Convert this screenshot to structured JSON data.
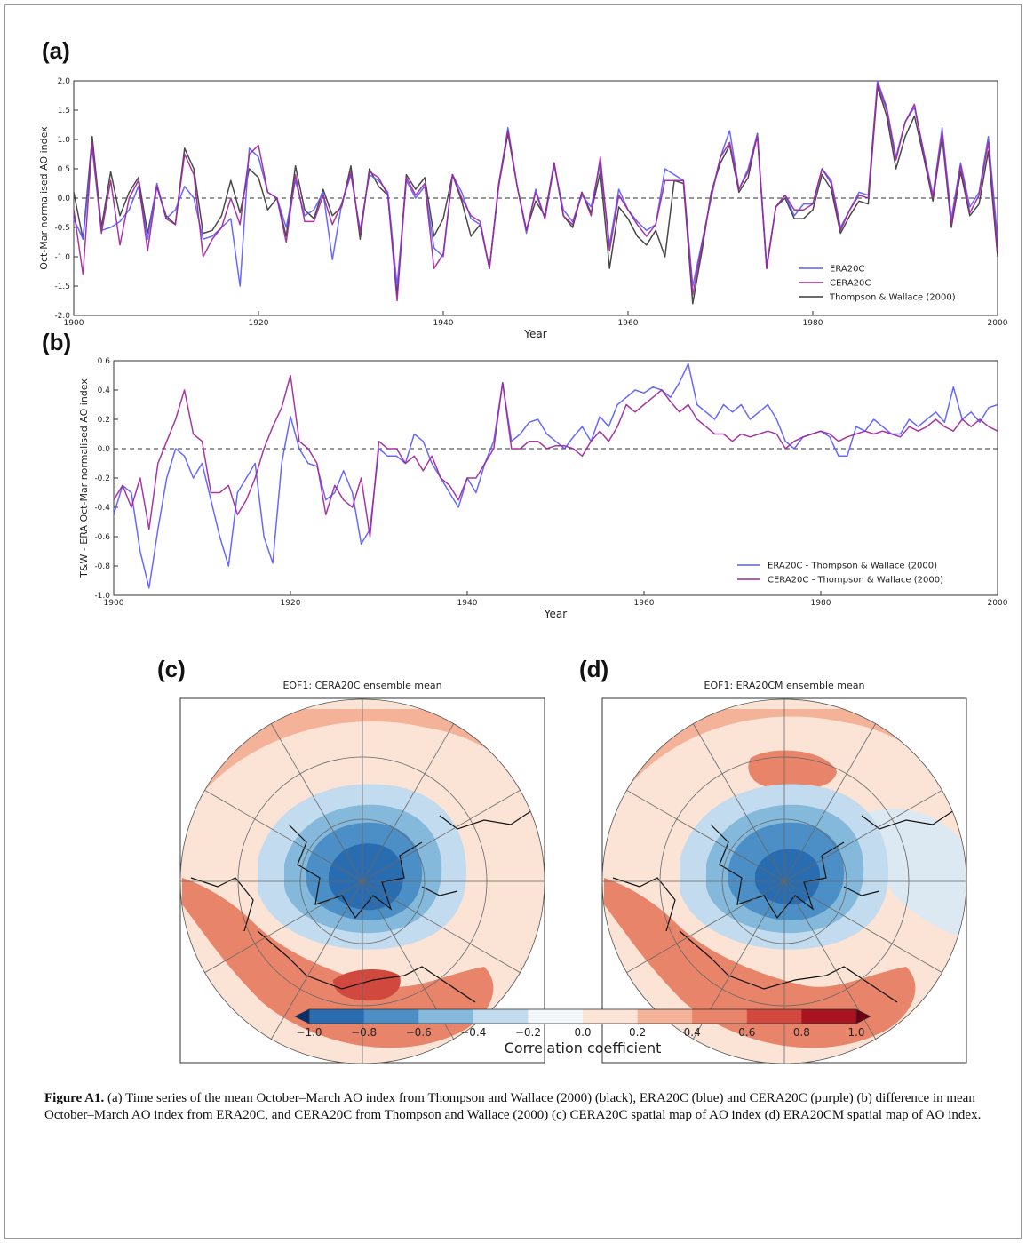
{
  "figure": {
    "caption_label": "Figure A1.",
    "caption_text": " (a) Time series of the mean October–March AO index from Thompson and Wallace (2000) (black), ERA20C (blue) and CERA20C (purple) (b) difference in mean October–March AO index from ERA20C, and CERA20C from Thompson and Wallace (2000) (c) CERA20C spatial map of AO index (d) ERA20CM spatial map of AO index."
  },
  "chart_data": [
    {
      "panel": "(a)",
      "type": "line",
      "xlabel": "Year",
      "ylabel": "Oct-Mar normalised AO index",
      "xlim": [
        1900,
        2000
      ],
      "ylim": [
        -2.0,
        2.0
      ],
      "xticks": [
        "1900",
        "1920",
        "1940",
        "1960",
        "1980",
        "2000"
      ],
      "yticks": [
        "2.0",
        "1.5",
        "1.0",
        "0.5",
        "0.0",
        "-0.5",
        "-1.0",
        "-1.5",
        "-2.0"
      ],
      "legend_position": "lower-right",
      "zero_line": true,
      "colors": {
        "ERA20C": "#5b5bff",
        "CERA20C": "#a0269a",
        "Thompson & Wallace (2000)": "#3a3a3a"
      },
      "series": [
        {
          "name": "Thompson & Wallace (2000)",
          "color": "#3a3a3a",
          "values": [
            0.1,
            -0.7,
            1.05,
            -0.5,
            0.45,
            -0.3,
            0.1,
            0.35,
            -0.6,
            0.2,
            -0.3,
            -0.45,
            0.85,
            0.5,
            -0.6,
            -0.55,
            -0.3,
            0.3,
            -0.25,
            0.5,
            0.35,
            -0.2,
            0.0,
            -0.65,
            0.55,
            -0.2,
            -0.35,
            0.15,
            -0.3,
            -0.15,
            0.55,
            -0.7,
            0.5,
            0.2,
            0.05,
            -1.65,
            0.4,
            0.15,
            0.35,
            -0.65,
            -0.35,
            0.4,
            -0.05,
            -0.65,
            -0.45,
            -1.2,
            0.2,
            1.1,
            0.2,
            -0.55,
            -0.05,
            -0.3,
            0.6,
            -0.3,
            -0.5,
            0.1,
            -0.25,
            0.45,
            -1.2,
            -0.15,
            -0.35,
            -0.65,
            -0.8,
            -0.55,
            -1.0,
            0.3,
            0.25,
            -1.8,
            -0.9,
            0.1,
            0.6,
            0.9,
            0.1,
            0.35,
            1.1,
            -1.2,
            -0.15,
            0.0,
            -0.35,
            -0.35,
            -0.2,
            0.4,
            0.15,
            -0.6,
            -0.3,
            -0.05,
            -0.1,
            1.9,
            1.4,
            0.5,
            1.05,
            1.4,
            0.7,
            -0.05,
            1.05,
            -0.5,
            0.45,
            -0.3,
            -0.1,
            0.8,
            -1.0
          ]
        },
        {
          "name": "ERA20C",
          "color": "#5b5bff",
          "values": [
            -0.35,
            -0.7,
            0.85,
            -0.55,
            -0.5,
            -0.4,
            -0.2,
            0.2,
            -0.7,
            0.25,
            -0.35,
            -0.2,
            0.2,
            0.0,
            -0.7,
            -0.65,
            -0.5,
            -0.35,
            -1.5,
            0.85,
            0.7,
            0.1,
            0.0,
            -0.5,
            0.3,
            -0.3,
            -0.2,
            0.1,
            -1.05,
            -0.1,
            0.4,
            -0.55,
            0.4,
            0.3,
            0.1,
            -1.5,
            0.3,
            0.0,
            0.2,
            -0.85,
            -1.0,
            0.4,
            0.1,
            -0.35,
            -0.45,
            -1.2,
            0.2,
            1.2,
            0.2,
            -0.6,
            0.15,
            -0.35,
            0.55,
            -0.2,
            -0.4,
            0.05,
            -0.15,
            0.6,
            -0.8,
            0.15,
            -0.2,
            -0.4,
            -0.55,
            -0.45,
            0.5,
            0.4,
            0.3,
            -1.5,
            -0.75,
            0.0,
            0.7,
            1.15,
            0.15,
            0.5,
            1.1,
            -1.15,
            -0.15,
            0.05,
            -0.3,
            -0.1,
            -0.1,
            0.5,
            0.3,
            -0.5,
            -0.2,
            0.1,
            0.05,
            2.0,
            1.55,
            0.7,
            1.3,
            1.55,
            0.8,
            0.05,
            1.2,
            -0.35,
            0.6,
            -0.15,
            0.1,
            1.05,
            -0.7
          ]
        },
        {
          "name": "CERA20C",
          "color": "#a0269a",
          "values": [
            -0.2,
            -1.3,
            0.95,
            -0.6,
            0.3,
            -0.8,
            0.0,
            0.3,
            -0.9,
            0.2,
            -0.35,
            -0.45,
            0.75,
            0.4,
            -1.0,
            -0.7,
            -0.5,
            0.0,
            -0.45,
            0.75,
            0.9,
            0.1,
            0.0,
            -0.75,
            0.4,
            -0.4,
            -0.4,
            0.05,
            -0.45,
            -0.1,
            0.45,
            -0.6,
            0.45,
            0.35,
            0.05,
            -1.75,
            0.35,
            0.05,
            0.25,
            -1.2,
            -0.95,
            0.4,
            0.0,
            -0.3,
            -0.4,
            -1.2,
            0.25,
            1.15,
            0.2,
            -0.55,
            0.1,
            -0.35,
            0.6,
            -0.3,
            -0.45,
            0.1,
            -0.3,
            0.7,
            -0.9,
            0.05,
            -0.2,
            -0.45,
            -0.65,
            -0.45,
            0.3,
            0.3,
            0.3,
            -1.65,
            -0.8,
            0.05,
            0.7,
            0.95,
            0.15,
            0.45,
            1.05,
            -1.2,
            -0.15,
            0.05,
            -0.2,
            -0.2,
            -0.1,
            0.5,
            0.25,
            -0.55,
            -0.2,
            0.05,
            0.0,
            1.95,
            1.5,
            0.65,
            1.3,
            1.6,
            0.75,
            0.0,
            1.1,
            -0.45,
            0.55,
            -0.25,
            0.05,
            0.95,
            -0.9
          ]
        }
      ]
    },
    {
      "panel": "(b)",
      "type": "line",
      "xlabel": "Year",
      "ylabel": "T&W - ERA Oct-Mar normalised AO index",
      "xlim": [
        1900,
        2000
      ],
      "ylim": [
        -1.0,
        0.6
      ],
      "xticks": [
        "1900",
        "1920",
        "1940",
        "1960",
        "1980",
        "2000"
      ],
      "yticks": [
        "0.6",
        "0.4",
        "0.2",
        "0.0",
        "-0.2",
        "-0.4",
        "-0.6",
        "-0.8",
        "-1.0"
      ],
      "legend_position": "lower-right",
      "zero_line": true,
      "colors": {
        "ERA20C - Thompson & Wallace (2000)": "#5b5bff",
        "CERA20C - Thompson & Wallace (2000)": "#a0269a"
      },
      "series": [
        {
          "name": "ERA20C - Thompson & Wallace (2000)",
          "color": "#5b5bff",
          "values": [
            -0.45,
            -0.25,
            -0.3,
            -0.7,
            -0.95,
            -0.55,
            -0.2,
            0.0,
            -0.05,
            -0.2,
            -0.1,
            -0.35,
            -0.6,
            -0.8,
            -0.3,
            -0.2,
            -0.1,
            -0.6,
            -0.78,
            -0.1,
            0.22,
            0.0,
            -0.1,
            -0.12,
            -0.35,
            -0.3,
            -0.15,
            -0.3,
            -0.65,
            -0.55,
            0.0,
            -0.05,
            -0.05,
            -0.1,
            0.1,
            0.05,
            -0.1,
            -0.2,
            -0.3,
            -0.4,
            -0.2,
            -0.3,
            -0.1,
            0.05,
            0.45,
            0.05,
            0.1,
            0.18,
            0.2,
            0.1,
            0.05,
            0.0,
            0.08,
            0.15,
            0.05,
            0.22,
            0.15,
            0.3,
            0.35,
            0.4,
            0.38,
            0.42,
            0.4,
            0.35,
            0.45,
            0.58,
            0.3,
            0.25,
            0.2,
            0.3,
            0.25,
            0.3,
            0.2,
            0.25,
            0.3,
            0.2,
            0.05,
            0.0,
            0.08,
            0.1,
            0.12,
            0.08,
            -0.05,
            -0.05,
            0.15,
            0.12,
            0.2,
            0.15,
            0.1,
            0.1,
            0.2,
            0.15,
            0.2,
            0.25,
            0.18,
            0.42,
            0.2,
            0.25,
            0.18,
            0.28,
            0.3
          ]
        },
        {
          "name": "CERA20C - Thompson & Wallace (2000)",
          "color": "#a0269a",
          "values": [
            -0.35,
            -0.25,
            -0.4,
            -0.2,
            -0.55,
            -0.1,
            0.05,
            0.2,
            0.4,
            0.1,
            0.05,
            -0.3,
            -0.3,
            -0.25,
            -0.45,
            -0.35,
            -0.2,
            0.0,
            0.15,
            0.28,
            0.5,
            0.05,
            0.0,
            -0.1,
            -0.45,
            -0.25,
            -0.35,
            -0.4,
            -0.2,
            -0.6,
            0.05,
            0.0,
            0.0,
            -0.1,
            -0.05,
            -0.15,
            -0.05,
            -0.2,
            -0.25,
            -0.35,
            -0.2,
            -0.2,
            -0.1,
            0.0,
            0.45,
            0.0,
            0.0,
            0.05,
            0.05,
            0.0,
            0.02,
            0.02,
            0.0,
            -0.05,
            0.05,
            0.12,
            0.05,
            0.15,
            0.3,
            0.25,
            0.3,
            0.35,
            0.4,
            0.32,
            0.25,
            0.3,
            0.2,
            0.15,
            0.1,
            0.1,
            0.05,
            0.1,
            0.08,
            0.1,
            0.12,
            0.1,
            0.0,
            0.05,
            0.08,
            0.1,
            0.12,
            0.1,
            0.05,
            0.08,
            0.1,
            0.12,
            0.1,
            0.12,
            0.1,
            0.08,
            0.15,
            0.12,
            0.15,
            0.2,
            0.15,
            0.12,
            0.2,
            0.15,
            0.2,
            0.15,
            0.12
          ]
        }
      ]
    },
    {
      "panel": "(c)",
      "type": "heatmap",
      "title": "EOF1: CERA20C ensemble mean",
      "projection": "north polar stereographic"
    },
    {
      "panel": "(d)",
      "type": "heatmap",
      "title": "EOF1: ERA20CM ensemble mean",
      "projection": "north polar stereographic"
    },
    {
      "panel": "colorbar",
      "type": "heatmap",
      "label": "Correlation coefficient",
      "ticks": [
        "−1.0",
        "−0.8",
        "−0.6",
        "−0.4",
        "−0.2",
        "0.0",
        "0.2",
        "0.4",
        "0.6",
        "0.8",
        "1.0"
      ],
      "range": [
        -1.0,
        1.0
      ],
      "colors": [
        "#08306b",
        "#2a6cb0",
        "#4b8fc6",
        "#84b9dc",
        "#c2dbee",
        "#f3f6f8",
        "#fbe3d6",
        "#f4b399",
        "#e8846a",
        "#d1493e",
        "#a8141f",
        "#6d0013"
      ]
    }
  ]
}
